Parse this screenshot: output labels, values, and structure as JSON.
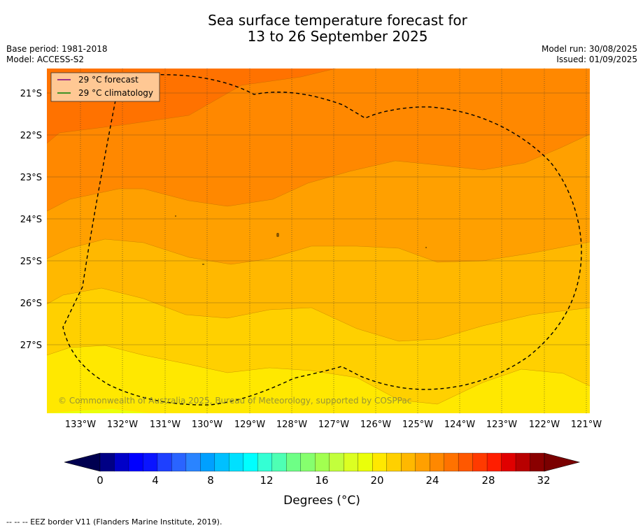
{
  "header": {
    "title_line1": "Sea surface temperature forecast for",
    "title_line2": "13 to 26 September 2025",
    "base_period": "Base period: 1981-2018",
    "model": "Model: ACCESS-S2",
    "model_run": "Model run: 30/08/2025",
    "issued": "Issued: 01/09/2025"
  },
  "map": {
    "lat_labels": [
      "21°S",
      "22°S",
      "23°S",
      "24°S",
      "25°S",
      "26°S",
      "27°S"
    ],
    "lon_labels": [
      "133°W",
      "132°W",
      "131°W",
      "130°W",
      "129°W",
      "128°W",
      "127°W",
      "126°W",
      "125°W",
      "124°W",
      "123°W",
      "122°W",
      "121°W"
    ],
    "legend": [
      {
        "label": "29 °C  forecast",
        "color": "#800080"
      },
      {
        "label": "29 °C  climatology",
        "color": "#008000"
      }
    ],
    "copyright": "© Commonwealth of Australia 2025, Bureau of Meteorology, supported by COSPPac",
    "eez_border_color": "#000000"
  },
  "colorbar": {
    "ticks": [
      "0",
      "4",
      "8",
      "12",
      "16",
      "20",
      "24",
      "28",
      "32"
    ],
    "label": "Degrees (°C)",
    "colors": [
      "#000085",
      "#0000c8",
      "#0000ff",
      "#0a14ff",
      "#1e40ff",
      "#2a64ff",
      "#2a84ff",
      "#00a0ff",
      "#00c0ff",
      "#00e0ff",
      "#00ffff",
      "#34ffd4",
      "#4effb4",
      "#6eff86",
      "#86ff6e",
      "#a2ff50",
      "#c2ff3c",
      "#dcff22",
      "#eaff0a",
      "#ffe800",
      "#ffd000",
      "#ffb800",
      "#ffa000",
      "#ff8800",
      "#ff7200",
      "#ff5800",
      "#ff3a00",
      "#ff1e00",
      "#e00000",
      "#b80000",
      "#8a0000"
    ],
    "under_color": "#000050",
    "over_color": "#7a0000"
  },
  "footnote": "-- -- -- EEZ border V11 (Flanders Marine Institute, 2019)."
}
